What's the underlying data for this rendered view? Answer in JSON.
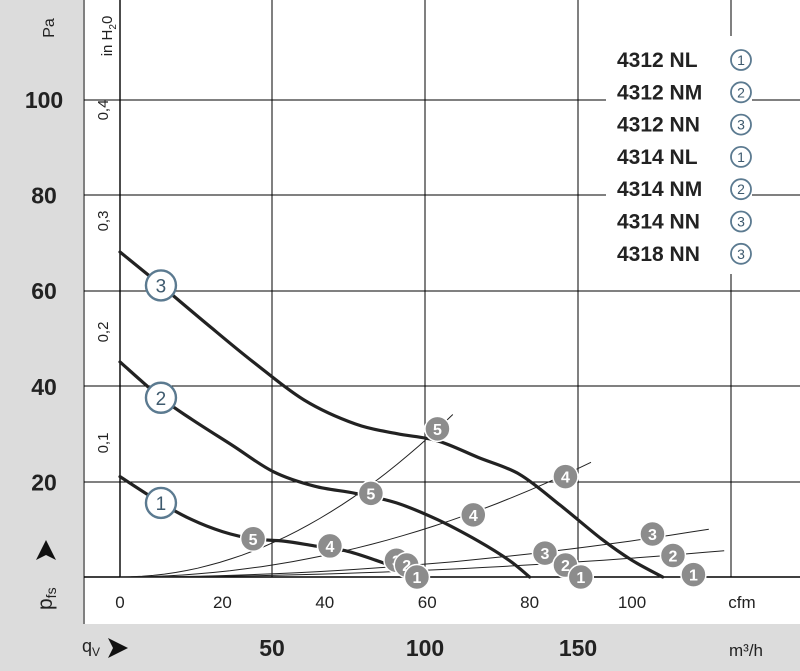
{
  "chart_data": {
    "type": "line",
    "x_axis_primary": {
      "unit": "cfm",
      "range": [
        0,
        115
      ],
      "ticks": [
        0,
        20,
        40,
        60,
        80,
        100
      ],
      "tick_labels": [
        "0",
        "20",
        "40",
        "60",
        "80",
        "100"
      ],
      "unit_label": "cfm"
    },
    "x_axis_secondary": {
      "symbol_q": "q",
      "symbol_sub": "V",
      "unit_label": "m³/h",
      "ticks": [
        50,
        100,
        150
      ],
      "tick_labels": [
        "50",
        "100",
        "150"
      ]
    },
    "y_axis_primary": {
      "unit_label": "Pa",
      "symbol_p": "p",
      "symbol_sub": "fs",
      "range": [
        0,
        112
      ],
      "ticks": [
        20,
        40,
        60,
        80,
        100
      ],
      "tick_labels": [
        "20",
        "40",
        "60",
        "80",
        "100"
      ]
    },
    "y_axis_secondary": {
      "unit_label_prefix": "in H",
      "unit_label_sub": "2",
      "unit_label_suffix": "0",
      "ticks": [
        0.1,
        0.2,
        0.3,
        0.4
      ],
      "tick_labels": [
        "0,1",
        "0,2",
        "0,3",
        "0,4"
      ]
    },
    "grid": true,
    "legend_position": "top-right",
    "legend": [
      {
        "model": "4312 NL",
        "curve": "1"
      },
      {
        "model": "4312 NM",
        "curve": "2"
      },
      {
        "model": "4312 NN",
        "curve": "3"
      },
      {
        "model": "4314 NL",
        "curve": "1"
      },
      {
        "model": "4314 NM",
        "curve": "2"
      },
      {
        "model": "4314 NN",
        "curve": "3"
      },
      {
        "model": "4318 NN",
        "curve": "3"
      }
    ],
    "series": [
      {
        "curve": "1",
        "points": [
          [
            0,
            21
          ],
          [
            8,
            15.5
          ],
          [
            14,
            12
          ],
          [
            20,
            9.5
          ],
          [
            26,
            8
          ],
          [
            32,
            7.5
          ],
          [
            38,
            6.5
          ],
          [
            44,
            5.5
          ],
          [
            50,
            3.5
          ],
          [
            55,
            1.5
          ],
          [
            58,
            0
          ]
        ],
        "label_at": [
          8,
          15.5
        ]
      },
      {
        "curve": "2",
        "points": [
          [
            0,
            45
          ],
          [
            8,
            37.5
          ],
          [
            14,
            33
          ],
          [
            22,
            27.5
          ],
          [
            30,
            22
          ],
          [
            38,
            19
          ],
          [
            46,
            17.5
          ],
          [
            54,
            15.5
          ],
          [
            62,
            12
          ],
          [
            70,
            7.5
          ],
          [
            76,
            3.5
          ],
          [
            80,
            0
          ]
        ],
        "label_at": [
          8,
          37.5
        ]
      },
      {
        "curve": "3",
        "points": [
          [
            0,
            68
          ],
          [
            8,
            61
          ],
          [
            18,
            52
          ],
          [
            26,
            45
          ],
          [
            36,
            37
          ],
          [
            46,
            32
          ],
          [
            54,
            30
          ],
          [
            62,
            28.5
          ],
          [
            70,
            25
          ],
          [
            78,
            21.5
          ],
          [
            86,
            15
          ],
          [
            94,
            8
          ],
          [
            100,
            3.5
          ],
          [
            106,
            0
          ]
        ],
        "label_at": [
          8,
          61
        ]
      }
    ],
    "operating_points": [
      {
        "label": "5",
        "x": 26,
        "y": 8
      },
      {
        "label": "4",
        "x": 41,
        "y": 6.5
      },
      {
        "label": "3",
        "x": 54,
        "y": 3.5
      },
      {
        "label": "2",
        "x": 56,
        "y": 2.5
      },
      {
        "label": "1",
        "x": 58,
        "y": 0
      },
      {
        "label": "5",
        "x": 49,
        "y": 17.5
      },
      {
        "label": "4",
        "x": 69,
        "y": 13
      },
      {
        "label": "3",
        "x": 83,
        "y": 5
      },
      {
        "label": "2",
        "x": 87,
        "y": 2.5
      },
      {
        "label": "1",
        "x": 90,
        "y": 0
      },
      {
        "label": "5",
        "x": 62,
        "y": 31
      },
      {
        "label": "4",
        "x": 87,
        "y": 21
      },
      {
        "label": "3",
        "x": 104,
        "y": 9
      },
      {
        "label": "2",
        "x": 108,
        "y": 4.5
      },
      {
        "label": "1",
        "x": 112,
        "y": 0.5
      }
    ],
    "system_curves": [
      {
        "label": "5",
        "end": [
          65,
          34
        ]
      },
      {
        "label": "4",
        "end": [
          92,
          24
        ]
      },
      {
        "label": "3",
        "end": [
          115,
          10
        ]
      },
      {
        "label": "2",
        "end": [
          118,
          5.5
        ]
      }
    ]
  }
}
